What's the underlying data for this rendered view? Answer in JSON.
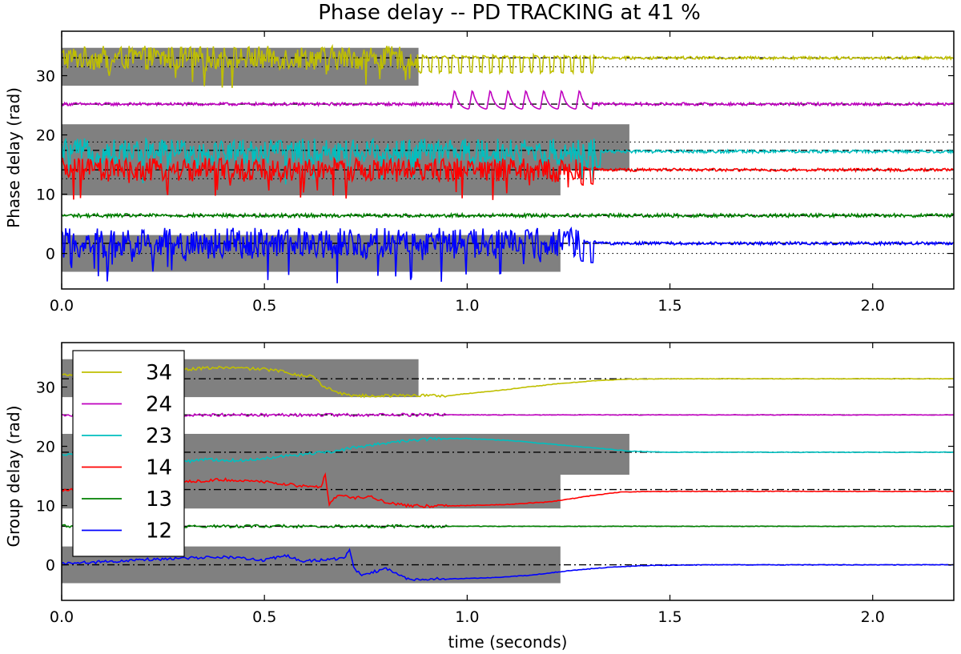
{
  "chart_data": [
    {
      "type": "line",
      "title": "Phase delay -- PD TRACKING at 41 %",
      "xlabel": "",
      "ylabel": "Phase delay (rad)",
      "xlim": [
        0.0,
        2.2
      ],
      "ylim": [
        -6,
        37.5
      ],
      "xticks": [
        0.0,
        0.5,
        1.0,
        1.5,
        2.0
      ],
      "xtick_labels": [
        "0.0",
        "0.5",
        "1.0",
        "1.5",
        "2.0"
      ],
      "yticks": [
        0,
        10,
        20,
        30
      ],
      "ytick_labels": [
        "0",
        "10",
        "20",
        "30"
      ],
      "shaded_regions": [
        {
          "series": "34",
          "x": [
            0.0,
            0.88
          ],
          "y": [
            28.3,
            34.7
          ]
        },
        {
          "series": "23",
          "x": [
            0.0,
            1.4
          ],
          "y": [
            14.0,
            21.8
          ]
        },
        {
          "series": "14",
          "x": [
            0.0,
            1.23
          ],
          "y": [
            9.8,
            18.5
          ]
        },
        {
          "series": "12",
          "x": [
            0.0,
            1.23
          ],
          "y": [
            -3.1,
            3.1
          ]
        }
      ],
      "series": [
        {
          "name": "34",
          "color": "#bfbf00",
          "baseline": 33.0,
          "dashed_ref": 33.0,
          "dotted_ref": 31.5,
          "noisy_until": 0.88,
          "noise_amp": 2.0,
          "settle_at": 1.33
        },
        {
          "name": "24",
          "color": "#bf00bf",
          "baseline": 25.2,
          "dashed_ref": 25.2,
          "dotted_ref": null,
          "burst": [
            0.96,
            1.31
          ],
          "burst_amp": 3.5
        },
        {
          "name": "23",
          "color": "#00bfbf",
          "baseline": 17.2,
          "dashed_ref": 17.4,
          "dotted_ref": 18.8,
          "noisy_until": 1.32,
          "noise_amp": 2.2,
          "settle_at": 1.33
        },
        {
          "name": "14",
          "color": "#ff0000",
          "baseline": 14.1,
          "dashed_ref": 14.1,
          "dotted_ref": 12.6,
          "noisy_until": 1.28,
          "noise_amp": 2.0,
          "settle_at": 1.33
        },
        {
          "name": "13",
          "color": "#008000",
          "baseline": 6.4,
          "dashed_ref": 6.4,
          "dotted_ref": null,
          "noise_amp": 0.3
        },
        {
          "name": "12",
          "color": "#0000ff",
          "baseline": 1.7,
          "dashed_ref": 1.7,
          "dotted_ref": 0.0,
          "noisy_until": 1.28,
          "noise_amp": 2.6,
          "settle_at": 1.33
        }
      ]
    },
    {
      "type": "line",
      "title": "",
      "xlabel": "time (seconds)",
      "ylabel": "Group delay (rad)",
      "xlim": [
        0.0,
        2.2
      ],
      "ylim": [
        -6,
        37.5
      ],
      "xticks": [
        0.0,
        0.5,
        1.0,
        1.5,
        2.0
      ],
      "xtick_labels": [
        "0.0",
        "0.5",
        "1.0",
        "1.5",
        "2.0"
      ],
      "yticks": [
        0,
        10,
        20,
        30
      ],
      "ytick_labels": [
        "0",
        "10",
        "20",
        "30"
      ],
      "legend": {
        "placement": "upper-left",
        "entries": [
          "34",
          "24",
          "23",
          "14",
          "13",
          "12"
        ]
      },
      "shaded_regions": [
        {
          "series": "34",
          "x": [
            0.0,
            0.88
          ],
          "y": [
            28.3,
            34.7
          ]
        },
        {
          "series": "23",
          "x": [
            0.0,
            1.4
          ],
          "y": [
            15.2,
            22.1
          ]
        },
        {
          "series": "14",
          "x": [
            0.0,
            1.23
          ],
          "y": [
            9.5,
            16.5
          ]
        },
        {
          "series": "12",
          "x": [
            0.0,
            1.23
          ],
          "y": [
            -3.1,
            3.1
          ]
        }
      ],
      "series": [
        {
          "name": "34",
          "color": "#bfbf00",
          "ref": 31.4,
          "points": [
            [
              0.0,
              32.0
            ],
            [
              0.1,
              32.4
            ],
            [
              0.2,
              32.8
            ],
            [
              0.3,
              33.0
            ],
            [
              0.4,
              33.3
            ],
            [
              0.5,
              33.0
            ],
            [
              0.55,
              32.6
            ],
            [
              0.6,
              31.8
            ],
            [
              0.62,
              32.0
            ],
            [
              0.64,
              30.4
            ],
            [
              0.67,
              29.4
            ],
            [
              0.7,
              28.7
            ],
            [
              0.75,
              28.5
            ],
            [
              0.85,
              28.6
            ],
            [
              0.88,
              28.6
            ],
            [
              0.9,
              28.6
            ],
            [
              0.95,
              28.5
            ],
            [
              1.0,
              28.9
            ],
            [
              1.1,
              29.6
            ],
            [
              1.2,
              30.4
            ],
            [
              1.3,
              31.0
            ],
            [
              1.38,
              31.3
            ],
            [
              1.5,
              31.4
            ],
            [
              2.2,
              31.4
            ]
          ]
        },
        {
          "name": "24",
          "color": "#bf00bf",
          "ref": 25.3,
          "points": [
            [
              0.0,
              25.3
            ],
            [
              2.2,
              25.3
            ]
          ]
        },
        {
          "name": "23",
          "color": "#00bfbf",
          "ref": 19.0,
          "points": [
            [
              0.0,
              18.6
            ],
            [
              0.1,
              18.2
            ],
            [
              0.2,
              17.6
            ],
            [
              0.28,
              17.2
            ],
            [
              0.35,
              17.8
            ],
            [
              0.45,
              17.6
            ],
            [
              0.55,
              18.4
            ],
            [
              0.62,
              18.8
            ],
            [
              0.68,
              19.2
            ],
            [
              0.72,
              19.8
            ],
            [
              0.78,
              20.4
            ],
            [
              0.85,
              20.9
            ],
            [
              0.92,
              21.3
            ],
            [
              1.0,
              21.3
            ],
            [
              1.1,
              21.0
            ],
            [
              1.2,
              20.4
            ],
            [
              1.3,
              19.8
            ],
            [
              1.4,
              19.2
            ],
            [
              1.5,
              19.0
            ],
            [
              2.2,
              19.0
            ]
          ]
        },
        {
          "name": "14",
          "color": "#ff0000",
          "ref": 12.7,
          "points": [
            [
              0.0,
              12.6
            ],
            [
              0.1,
              13.0
            ],
            [
              0.2,
              13.6
            ],
            [
              0.3,
              14.0
            ],
            [
              0.4,
              14.4
            ],
            [
              0.5,
              14.0
            ],
            [
              0.58,
              13.4
            ],
            [
              0.64,
              13.2
            ],
            [
              0.65,
              15.2
            ],
            [
              0.66,
              10.2
            ],
            [
              0.68,
              11.8
            ],
            [
              0.72,
              11.2
            ],
            [
              0.76,
              11.6
            ],
            [
              0.8,
              10.6
            ],
            [
              0.85,
              10.0
            ],
            [
              0.9,
              9.9
            ],
            [
              1.0,
              10.0
            ],
            [
              1.1,
              10.2
            ],
            [
              1.2,
              10.6
            ],
            [
              1.3,
              11.6
            ],
            [
              1.38,
              12.3
            ],
            [
              1.5,
              12.4
            ],
            [
              2.2,
              12.4
            ]
          ]
        },
        {
          "name": "13",
          "color": "#008000",
          "ref": 6.5,
          "points": [
            [
              0.0,
              6.5
            ],
            [
              2.2,
              6.5
            ]
          ]
        },
        {
          "name": "12",
          "color": "#0000ff",
          "ref": 0.0,
          "points": [
            [
              0.0,
              0.2
            ],
            [
              0.1,
              0.5
            ],
            [
              0.2,
              0.9
            ],
            [
              0.3,
              1.1
            ],
            [
              0.4,
              1.3
            ],
            [
              0.5,
              0.8
            ],
            [
              0.55,
              1.6
            ],
            [
              0.6,
              0.6
            ],
            [
              0.66,
              0.9
            ],
            [
              0.7,
              1.2
            ],
            [
              0.71,
              2.8
            ],
            [
              0.72,
              -0.4
            ],
            [
              0.74,
              -1.8
            ],
            [
              0.78,
              -1.0
            ],
            [
              0.8,
              -0.6
            ],
            [
              0.85,
              -2.4
            ],
            [
              0.95,
              -2.4
            ],
            [
              1.05,
              -2.2
            ],
            [
              1.15,
              -1.8
            ],
            [
              1.25,
              -1.0
            ],
            [
              1.35,
              -0.4
            ],
            [
              1.45,
              -0.1
            ],
            [
              1.6,
              0.0
            ],
            [
              2.2,
              0.0
            ]
          ]
        }
      ]
    }
  ]
}
